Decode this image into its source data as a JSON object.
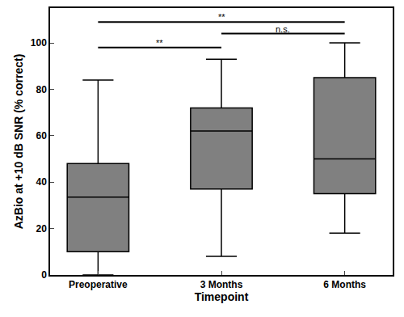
{
  "chart_data": {
    "type": "box",
    "x_label": "Timepoint",
    "y_label": "AzBio at +10 dB SNR (% correct)",
    "categories": [
      "Preoperative",
      "3 Months",
      "6 Months"
    ],
    "lowerfence": [
      0,
      8,
      18
    ],
    "q1": [
      10,
      37,
      35
    ],
    "median": [
      33.5,
      62,
      50
    ],
    "q3": [
      48,
      72,
      85
    ],
    "upperfence": [
      84,
      93,
      100
    ],
    "color": "#808080",
    "ylim": [
      0,
      115
    ],
    "yticks": [
      0,
      20,
      40,
      60,
      80,
      100
    ],
    "grid": false,
    "significance": [
      {
        "from": "Preoperative",
        "to": "3 Months",
        "y": 98,
        "label": "**"
      },
      {
        "from": "3 Months",
        "to": "6 Months",
        "y": 104,
        "label": "n.s."
      },
      {
        "from": "Preoperative",
        "to": "6 Months",
        "y": 109,
        "label": "**"
      }
    ]
  }
}
